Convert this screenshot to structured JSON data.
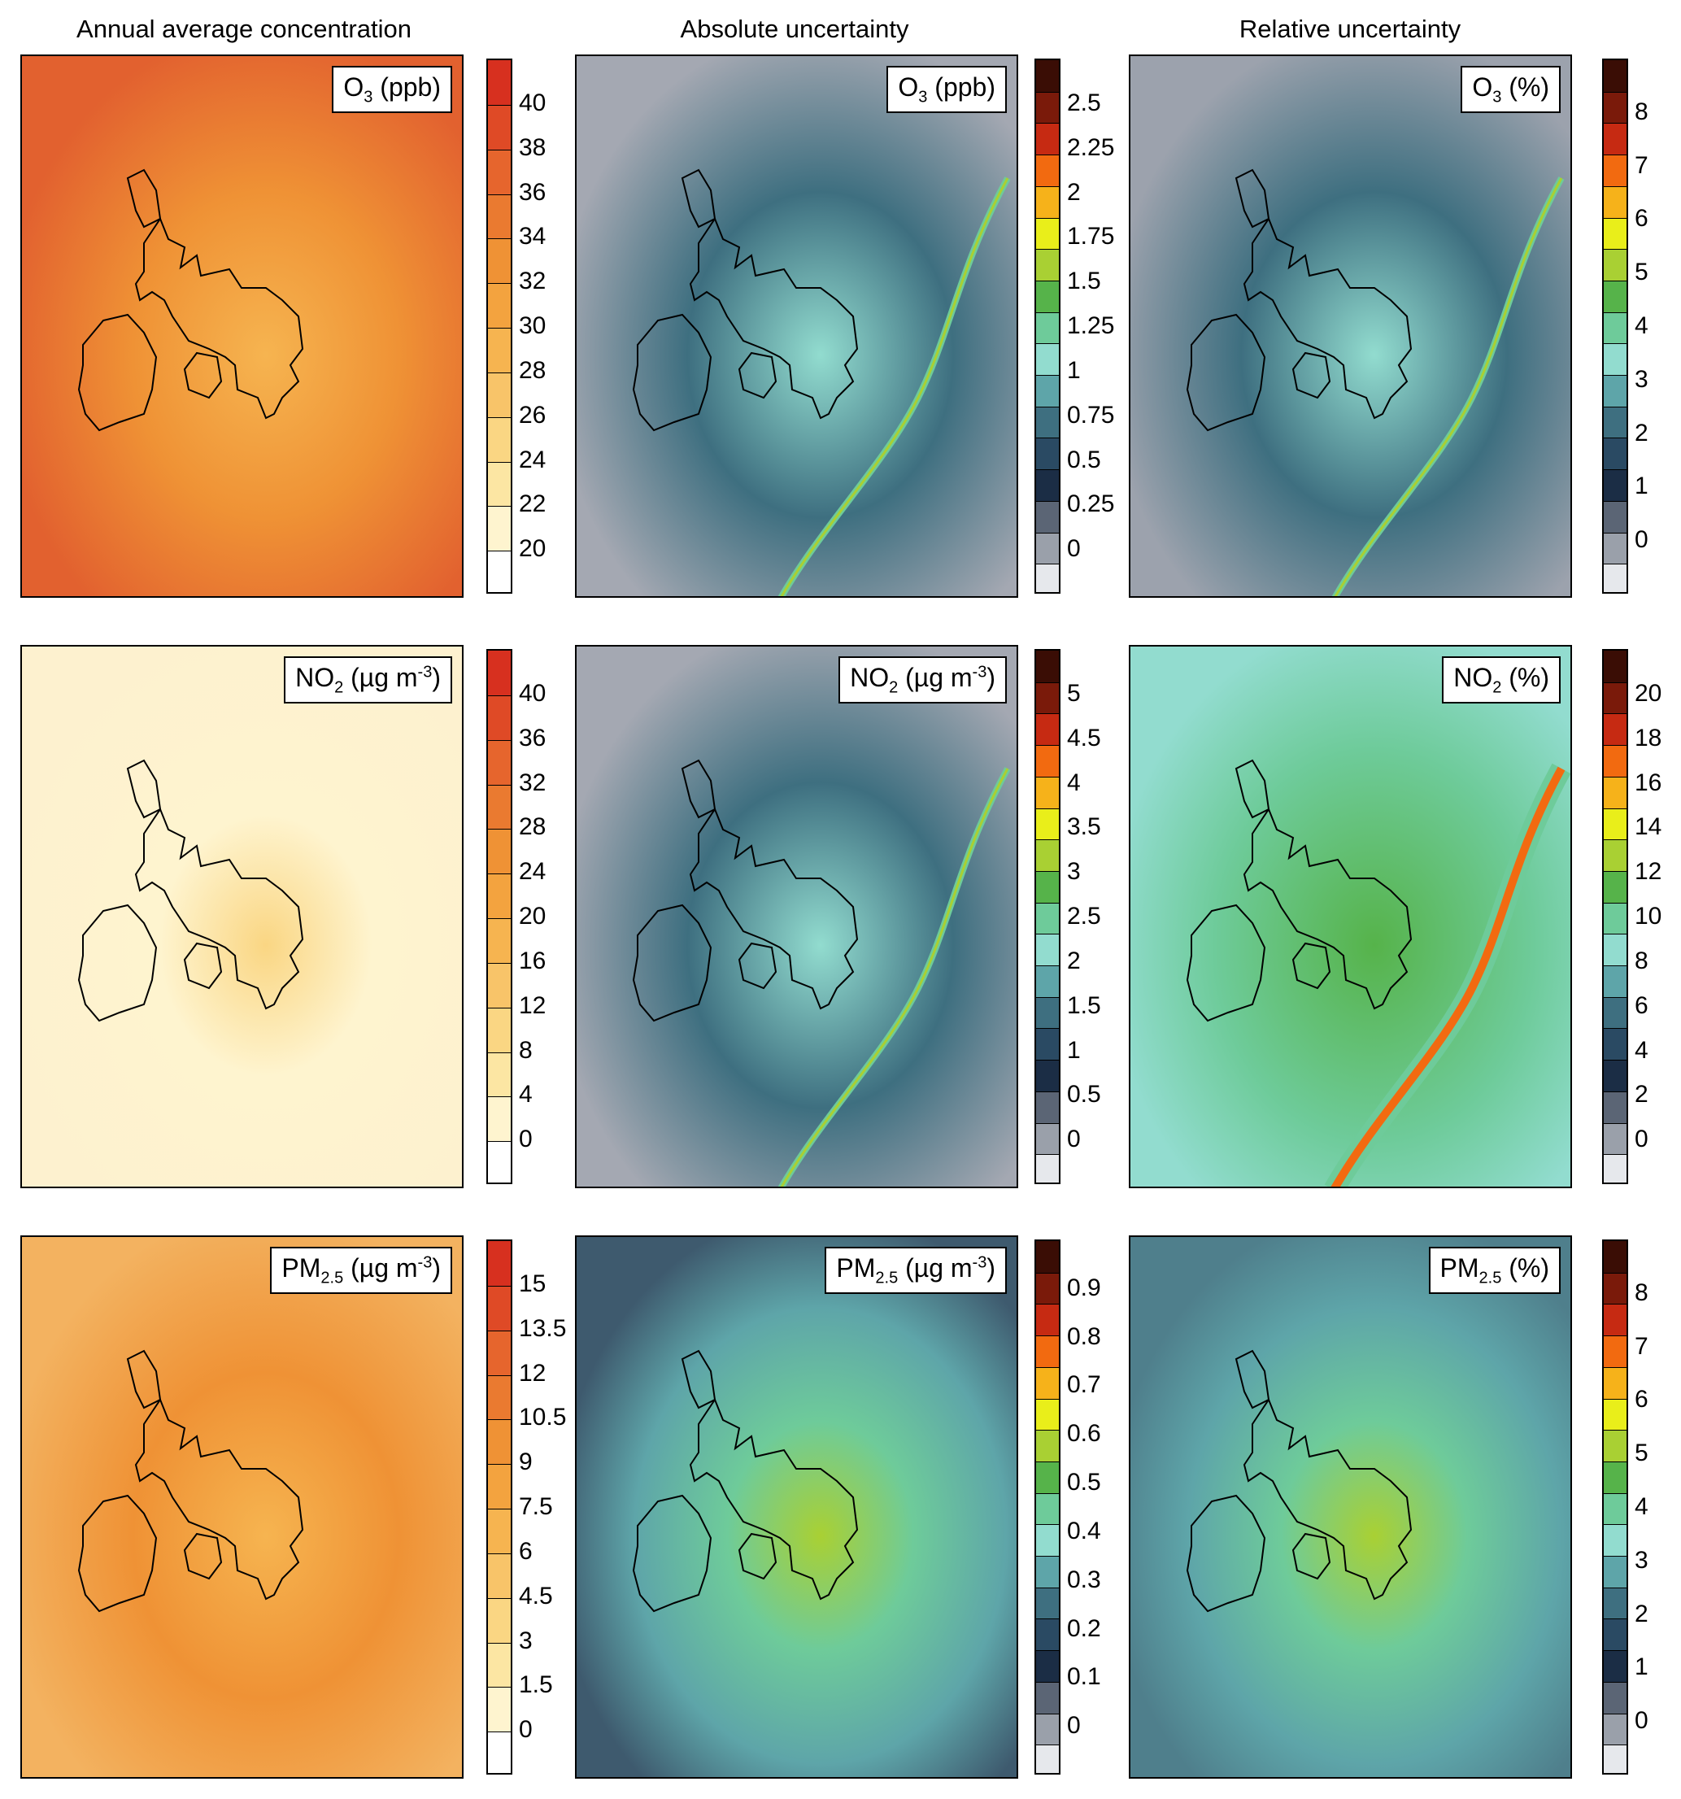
{
  "column_headers": [
    "Annual average concentration",
    "Absolute uncertainty",
    "Relative uncertainty"
  ],
  "panels": [
    {
      "id": "o3-conc",
      "row": 0,
      "col": 0,
      "species": "O",
      "sub": "3",
      "unit": " (ppb)",
      "sup": "",
      "unit_tail": "",
      "background": "#e2612f",
      "colorbar": {
        "ticks": [
          "40",
          "38",
          "36",
          "34",
          "32",
          "30",
          "28",
          "26",
          "24",
          "22",
          "20"
        ],
        "colors": [
          "#d7301f",
          "#df4a26",
          "#e6652d",
          "#ea7a30",
          "#ef9235",
          "#f3a33f",
          "#f6b450",
          "#f8c469",
          "#fad683",
          "#fce6a3",
          "#fef4cf",
          "#ffffff"
        ]
      }
    },
    {
      "id": "o3-abs",
      "row": 0,
      "col": 1,
      "species": "O",
      "sub": "3",
      "unit": " (ppb)",
      "sup": "",
      "unit_tail": "",
      "background": "#a4a8b2",
      "colorbar": {
        "ticks": [
          "2.5",
          "2.25",
          "2",
          "1.75",
          "1.5",
          "1.25",
          "1",
          "0.75",
          "0.5",
          "0.25",
          "0"
        ],
        "colors": [
          "#3a0d05",
          "#7a1a0a",
          "#c62a12",
          "#f26a10",
          "#f6b21a",
          "#e9ee1a",
          "#a9d033",
          "#56b34a",
          "#6ecb9a",
          "#92dccf",
          "#5ea5a9",
          "#3e6f80",
          "#2a4a63",
          "#1b2d45",
          "#5b6575",
          "#9aa0aa",
          "#e6e8ec"
        ]
      }
    },
    {
      "id": "o3-rel",
      "row": 0,
      "col": 2,
      "species": "O",
      "sub": "3",
      "unit": " (%)",
      "sup": "",
      "unit_tail": "",
      "background": "#9ca2ad",
      "colorbar": {
        "ticks": [
          "8",
          "7",
          "6",
          "5",
          "4",
          "3",
          "2",
          "1",
          "0"
        ],
        "colors": [
          "#3a0d05",
          "#7a1a0a",
          "#c62a12",
          "#f26a10",
          "#f6b21a",
          "#e9ee1a",
          "#a9d033",
          "#56b34a",
          "#6ecb9a",
          "#92dccf",
          "#5ea5a9",
          "#3e6f80",
          "#2a4a63",
          "#1b2d45",
          "#5b6575",
          "#9aa0aa",
          "#e6e8ec"
        ]
      }
    },
    {
      "id": "no2-conc",
      "row": 1,
      "col": 0,
      "species": "NO",
      "sub": "2",
      "unit": " (µg m",
      "sup": "-3",
      "unit_tail": ")",
      "background": "#fdf1cf",
      "colorbar": {
        "ticks": [
          "40",
          "36",
          "32",
          "28",
          "24",
          "20",
          "16",
          "12",
          "8",
          "4",
          "0"
        ],
        "colors": [
          "#d7301f",
          "#df4a26",
          "#e6652d",
          "#ea7a30",
          "#ef9235",
          "#f3a33f",
          "#f6b450",
          "#f8c469",
          "#fad683",
          "#fce6a3",
          "#fef4cf",
          "#ffffff"
        ]
      }
    },
    {
      "id": "no2-abs",
      "row": 1,
      "col": 1,
      "species": "NO",
      "sub": "2",
      "unit": " (µg m",
      "sup": "-3",
      "unit_tail": ")",
      "background": "#a4a8b2",
      "colorbar": {
        "ticks": [
          "5",
          "4.5",
          "4",
          "3.5",
          "3",
          "2.5",
          "2",
          "1.5",
          "1",
          "0.5",
          "0"
        ],
        "colors": [
          "#3a0d05",
          "#7a1a0a",
          "#c62a12",
          "#f26a10",
          "#f6b21a",
          "#e9ee1a",
          "#a9d033",
          "#56b34a",
          "#6ecb9a",
          "#92dccf",
          "#5ea5a9",
          "#3e6f80",
          "#2a4a63",
          "#1b2d45",
          "#5b6575",
          "#9aa0aa",
          "#e6e8ec"
        ]
      }
    },
    {
      "id": "no2-rel",
      "row": 1,
      "col": 2,
      "species": "NO",
      "sub": "2",
      "unit": " (%)",
      "sup": "",
      "unit_tail": "",
      "background": "#5fb8a4",
      "colorbar": {
        "ticks": [
          "20",
          "18",
          "16",
          "14",
          "12",
          "10",
          "8",
          "6",
          "4",
          "2",
          "0"
        ],
        "colors": [
          "#3a0d05",
          "#7a1a0a",
          "#c62a12",
          "#f26a10",
          "#f6b21a",
          "#e9ee1a",
          "#a9d033",
          "#56b34a",
          "#6ecb9a",
          "#92dccf",
          "#5ea5a9",
          "#3e6f80",
          "#2a4a63",
          "#1b2d45",
          "#5b6575",
          "#9aa0aa",
          "#e6e8ec"
        ]
      }
    },
    {
      "id": "pm25-conc",
      "row": 2,
      "col": 0,
      "species": "PM",
      "sub": "2.5",
      "unit": " (µg m",
      "sup": "-3",
      "unit_tail": ")",
      "background": "#f3b260",
      "colorbar": {
        "ticks": [
          "15",
          "13.5",
          "12",
          "10.5",
          "9",
          "7.5",
          "6",
          "4.5",
          "3",
          "1.5",
          "0"
        ],
        "colors": [
          "#d7301f",
          "#df4a26",
          "#e6652d",
          "#ea7a30",
          "#ef9235",
          "#f3a33f",
          "#f6b450",
          "#f8c469",
          "#fad683",
          "#fce6a3",
          "#fef4cf",
          "#ffffff"
        ]
      }
    },
    {
      "id": "pm25-abs",
      "row": 2,
      "col": 1,
      "species": "PM",
      "sub": "2.5",
      "unit": " (µg m",
      "sup": "-3",
      "unit_tail": ")",
      "background": "#3e5a6e",
      "colorbar": {
        "ticks": [
          "0.9",
          "0.8",
          "0.7",
          "0.6",
          "0.5",
          "0.4",
          "0.3",
          "0.2",
          "0.1",
          "0"
        ],
        "colors": [
          "#3a0d05",
          "#7a1a0a",
          "#c62a12",
          "#f26a10",
          "#f6b21a",
          "#e9ee1a",
          "#a9d033",
          "#56b34a",
          "#6ecb9a",
          "#92dccf",
          "#5ea5a9",
          "#3e6f80",
          "#2a4a63",
          "#1b2d45",
          "#5b6575",
          "#9aa0aa",
          "#e6e8ec"
        ]
      }
    },
    {
      "id": "pm25-rel",
      "row": 2,
      "col": 2,
      "species": "PM",
      "sub": "2.5",
      "unit": " (%)",
      "sup": "",
      "unit_tail": "",
      "background": "#4f7f8c",
      "colorbar": {
        "ticks": [
          "8",
          "7",
          "6",
          "5",
          "4",
          "3",
          "2",
          "1",
          "0"
        ],
        "colors": [
          "#3a0d05",
          "#7a1a0a",
          "#c62a12",
          "#f26a10",
          "#f6b21a",
          "#e9ee1a",
          "#a9d033",
          "#56b34a",
          "#6ecb9a",
          "#92dccf",
          "#5ea5a9",
          "#3e6f80",
          "#2a4a63",
          "#1b2d45",
          "#5b6575",
          "#9aa0aa",
          "#e6e8ec"
        ]
      }
    }
  ]
}
